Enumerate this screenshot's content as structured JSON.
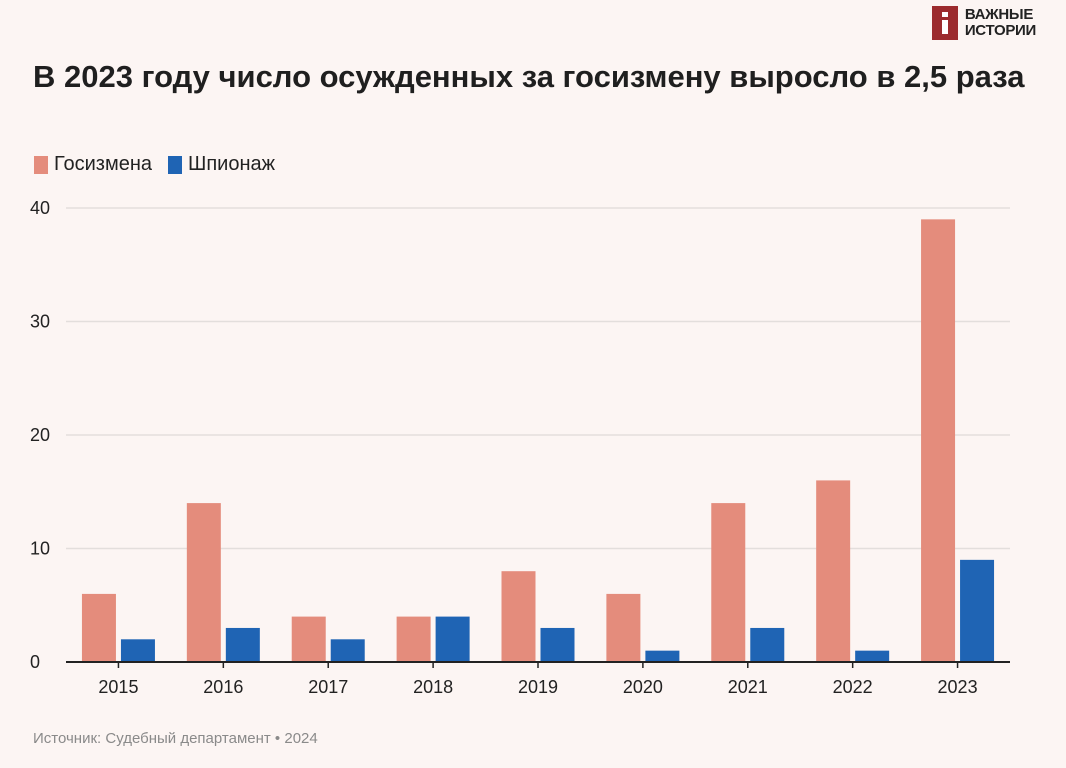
{
  "logo": {
    "line1": "ВАЖНЫЕ",
    "line2": "ИСТОРИИ"
  },
  "source": "Источник: Судебный департамент • 2024",
  "chart_data": {
    "type": "bar",
    "title": "В 2023 году число осужденных за госизмену выросло в 2,5 раза",
    "xlabel": "",
    "ylabel": "",
    "ylim": [
      0,
      40
    ],
    "yticks": [
      0,
      10,
      20,
      30,
      40
    ],
    "grid": true,
    "legend_placement": "top-left",
    "categories": [
      "2015",
      "2016",
      "2017",
      "2018",
      "2019",
      "2020",
      "2021",
      "2022",
      "2023"
    ],
    "series": [
      {
        "name": "Госизмена",
        "color": "#e48c7c",
        "values": [
          6,
          14,
          4,
          4,
          8,
          6,
          14,
          16,
          39
        ]
      },
      {
        "name": "Шпионаж",
        "color": "#1f64b4",
        "values": [
          2,
          3,
          2,
          4,
          3,
          1,
          3,
          1,
          9
        ]
      }
    ]
  }
}
